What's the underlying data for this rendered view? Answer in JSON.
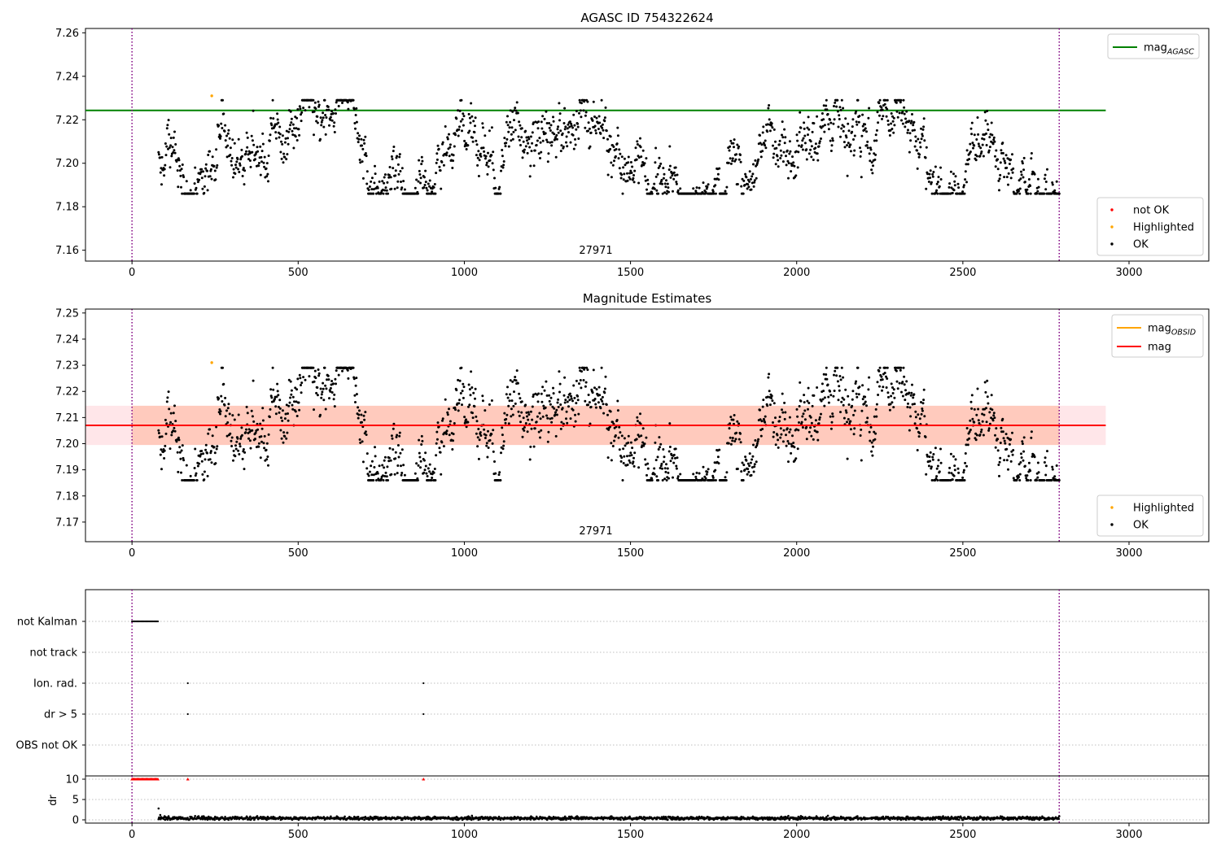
{
  "chart_data": [
    {
      "type": "scatter",
      "title": "AGASC ID 754322624",
      "annotation": "27971",
      "xlim": [
        -140,
        3240
      ],
      "ylim": [
        7.155,
        7.262
      ],
      "xticks": [
        0,
        500,
        1000,
        1500,
        2000,
        2500,
        3000
      ],
      "yticks": [
        7.16,
        7.18,
        7.2,
        7.22,
        7.24,
        7.26
      ],
      "ytick_labels": [
        "7.16",
        "7.18",
        "7.20",
        "7.22",
        "7.24",
        "7.26"
      ],
      "vlines": [
        0,
        2790
      ],
      "hline": {
        "name": "mag_AGASC",
        "y": 7.2243,
        "x_range": [
          -140,
          2930
        ],
        "color": "#008000"
      },
      "legend_lines": [
        {
          "label": "mag",
          "sub": "AGASC",
          "color": "#008000"
        }
      ],
      "legend_markers": [
        {
          "label": "not OK",
          "color": "#ff0000"
        },
        {
          "label": "Highlighted",
          "color": "#ffa500"
        },
        {
          "label": "OK",
          "color": "#000000"
        }
      ],
      "series": [
        {
          "name": "OK",
          "color": "#000000",
          "x_range": [
            80,
            2790
          ],
          "n_points": 1800,
          "y_base": 7.206,
          "y_spread": 0.009,
          "y_min": 7.186,
          "y_max": 7.229
        },
        {
          "name": "Highlighted",
          "color": "#ffa500",
          "points": [
            [
              240,
              7.231
            ]
          ]
        }
      ]
    },
    {
      "type": "scatter",
      "title": "Magnitude Estimates",
      "annotation": "27971",
      "xlim": [
        -140,
        3240
      ],
      "ylim": [
        7.1625,
        7.2515
      ],
      "xticks": [
        0,
        500,
        1000,
        1500,
        2000,
        2500,
        3000
      ],
      "yticks": [
        7.17,
        7.18,
        7.19,
        7.2,
        7.21,
        7.22,
        7.23,
        7.24,
        7.25
      ],
      "ytick_labels": [
        "7.17",
        "7.18",
        "7.19",
        "7.20",
        "7.21",
        "7.22",
        "7.23",
        "7.24",
        "7.25"
      ],
      "vlines": [
        0,
        2790
      ],
      "mag_line": {
        "y": 7.207,
        "x_range": [
          -140,
          2930
        ],
        "color": "#ff0000"
      },
      "mag_band": {
        "y": [
          7.1995,
          7.2145
        ],
        "x_range": [
          -140,
          2930
        ],
        "color": "#ffb6c1"
      },
      "obsid_band": {
        "y": [
          7.1995,
          7.2145
        ],
        "x_range": [
          0,
          2790
        ],
        "color": "#ffa07a"
      },
      "legend_lines": [
        {
          "label": "mag",
          "sub": "OBSID",
          "color": "#ffa500"
        },
        {
          "label": "mag",
          "sub": "",
          "color": "#ff0000"
        }
      ],
      "legend_markers": [
        {
          "label": "Highlighted",
          "color": "#ffa500"
        },
        {
          "label": "OK",
          "color": "#000000"
        }
      ],
      "series": [
        {
          "name": "OK",
          "color": "#000000",
          "x_range": [
            80,
            2790
          ],
          "n_points": 1800,
          "y_base": 7.206,
          "y_spread": 0.009,
          "y_min": 7.186,
          "y_max": 7.229
        },
        {
          "name": "Highlighted",
          "color": "#ffa500",
          "points": [
            [
              240,
              7.231
            ]
          ]
        }
      ]
    },
    {
      "type": "scatter",
      "xlim": [
        -140,
        3240
      ],
      "categories": [
        "not Kalman",
        "not track",
        "Ion. rad.",
        "dr > 5",
        "OBS not OK"
      ],
      "vlines": [
        0,
        2790
      ],
      "flags": [
        {
          "category": "not Kalman",
          "x_range": [
            0,
            80
          ]
        },
        {
          "category": "Ion. rad.",
          "x": [
            168,
            877
          ]
        },
        {
          "category": "dr > 5",
          "x": [
            168,
            877
          ]
        }
      ]
    },
    {
      "type": "scatter",
      "ylabel": "dr",
      "xlim": [
        -140,
        3240
      ],
      "ylim": [
        -0.8,
        10.8
      ],
      "yticks": [
        0,
        5,
        10
      ],
      "xticks": [
        0,
        500,
        1000,
        1500,
        2000,
        2500,
        3000
      ],
      "vlines": [
        0,
        2790
      ],
      "clipped": {
        "color": "#ff0000",
        "y": 10,
        "x_range": [
          0,
          80
        ],
        "x_extra": [
          168,
          877
        ]
      },
      "series": [
        {
          "name": "dr",
          "color": "#000000",
          "x_range": [
            80,
            2790
          ],
          "y_base": 0.4,
          "y_spread": 0.25,
          "extra_points": [
            [
              80,
              2.8
            ],
            [
              85,
              1.2
            ]
          ]
        }
      ]
    }
  ]
}
